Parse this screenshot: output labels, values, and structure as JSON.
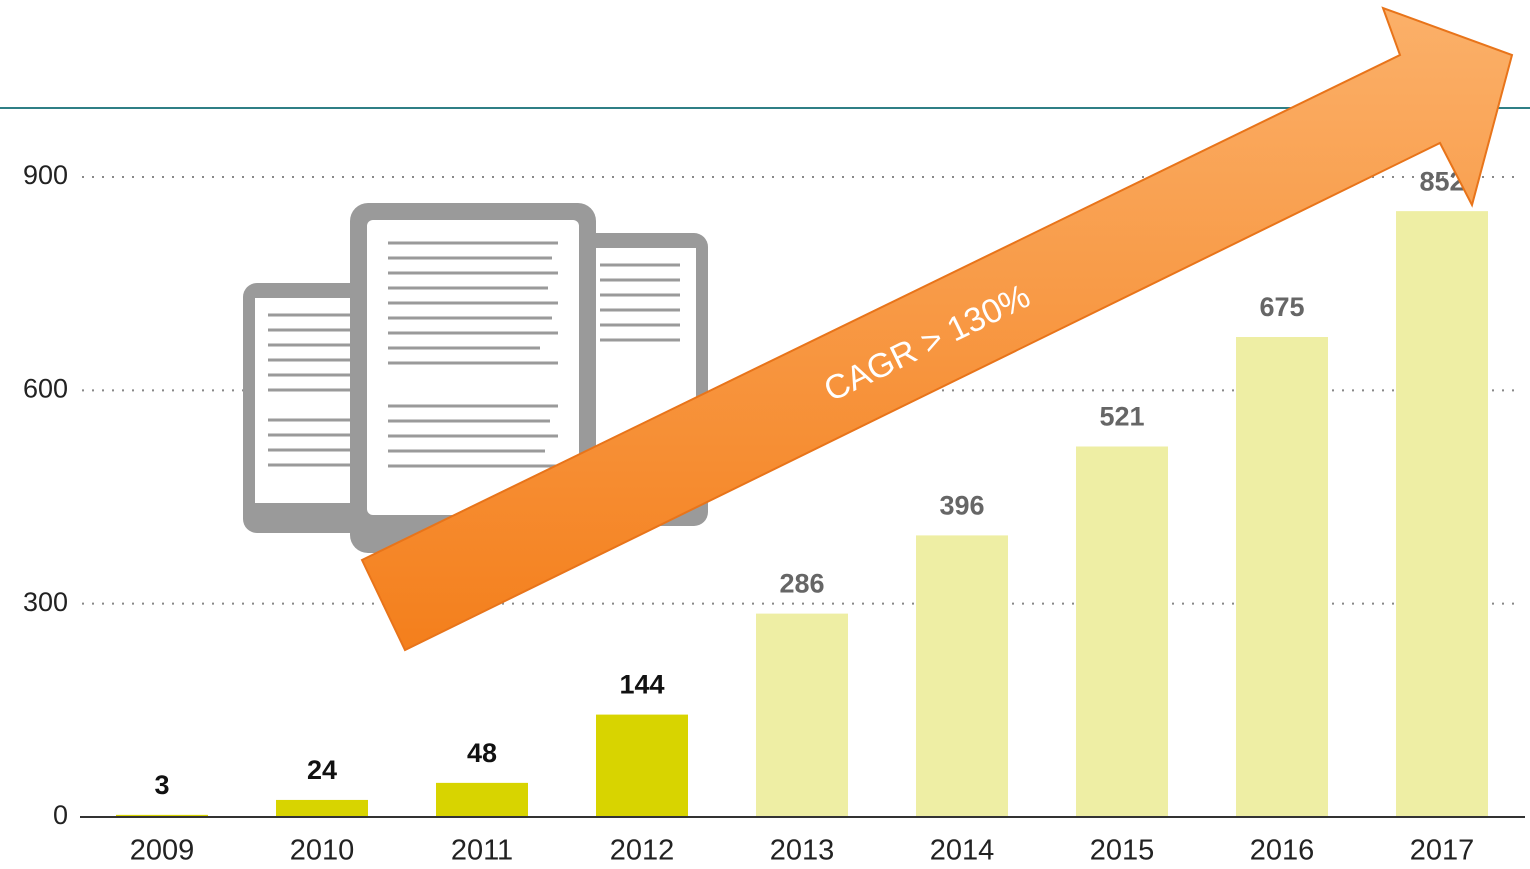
{
  "chart_data": {
    "type": "bar",
    "categories": [
      "2009",
      "2010",
      "2011",
      "2012",
      "2013",
      "2014",
      "2015",
      "2016",
      "2017"
    ],
    "values": [
      3,
      24,
      48,
      144,
      286,
      396,
      521,
      675,
      852
    ],
    "colors": [
      "#d8d400",
      "#d8d400",
      "#d8d400",
      "#d8d400",
      "#eeeea4",
      "#eeeea4",
      "#eeeea4",
      "#eeeea4",
      "#eeeea4"
    ],
    "label_colors": [
      "#111111",
      "#111111",
      "#111111",
      "#111111",
      "#666666",
      "#666666",
      "#666666",
      "#666666",
      "#666666"
    ],
    "ylim": [
      0,
      900
    ],
    "yticks": [
      0,
      300,
      600,
      900
    ],
    "grid": true,
    "annotation": "CAGR > 130%"
  }
}
